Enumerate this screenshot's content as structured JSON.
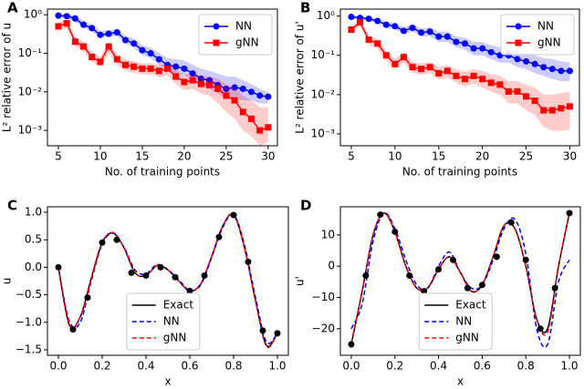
{
  "chart_data": [
    {
      "type": "line",
      "panel_label": "A",
      "xlabel": "No. of training points",
      "ylabel": "L² relative error of u",
      "log_y": true,
      "legend": "upper right",
      "x": [
        5,
        6,
        7,
        8,
        9,
        10,
        11,
        12,
        13,
        14,
        15,
        16,
        17,
        18,
        19,
        20,
        21,
        22,
        23,
        24,
        25,
        26,
        27,
        28,
        29,
        30
      ],
      "xlim": [
        3.7,
        31.1
      ],
      "xticks": [
        5,
        10,
        15,
        20,
        25,
        30
      ],
      "ylim": [
        0.0004,
        1.4
      ],
      "yticks": [
        {
          "value": 0.001,
          "label": "10⁻³"
        },
        {
          "value": 0.01,
          "label": "10⁻²"
        },
        {
          "value": 0.1,
          "label": "10⁻¹"
        },
        {
          "value": 1,
          "label": "10⁰"
        }
      ],
      "series": [
        {
          "name": "NN",
          "color": "#0000ff",
          "marker": "o",
          "values": [
            0.95,
            0.92,
            0.8,
            0.55,
            0.45,
            0.3,
            0.32,
            0.35,
            0.22,
            0.18,
            0.12,
            0.1,
            0.07,
            0.05,
            0.045,
            0.04,
            0.03,
            0.022,
            0.02,
            0.015,
            0.012,
            0.013,
            0.012,
            0.01,
            0.008,
            0.0075
          ],
          "lower": [
            0.85,
            0.8,
            0.65,
            0.45,
            0.37,
            0.25,
            0.27,
            0.28,
            0.18,
            0.14,
            0.09,
            0.075,
            0.05,
            0.035,
            0.03,
            0.027,
            0.02,
            0.014,
            0.012,
            0.009,
            0.007,
            0.007,
            0.006,
            0.006,
            0.005,
            0.005
          ],
          "upper": [
            1.05,
            1.05,
            0.95,
            0.7,
            0.55,
            0.38,
            0.4,
            0.42,
            0.28,
            0.24,
            0.16,
            0.14,
            0.1,
            0.075,
            0.07,
            0.065,
            0.05,
            0.04,
            0.035,
            0.03,
            0.025,
            0.025,
            0.02,
            0.016,
            0.012,
            0.01
          ]
        },
        {
          "name": "gNN",
          "color": "#ff0000",
          "marker": "s",
          "values": [
            0.5,
            0.6,
            0.2,
            0.15,
            0.08,
            0.06,
            0.15,
            0.07,
            0.05,
            0.045,
            0.04,
            0.04,
            0.035,
            0.04,
            0.025,
            0.018,
            0.02,
            0.016,
            0.015,
            0.012,
            0.008,
            0.006,
            0.003,
            0.002,
            0.001,
            0.0012
          ],
          "lower": [
            0.4,
            0.45,
            0.15,
            0.11,
            0.06,
            0.045,
            0.1,
            0.05,
            0.035,
            0.032,
            0.028,
            0.028,
            0.024,
            0.026,
            0.016,
            0.011,
            0.012,
            0.009,
            0.008,
            0.005,
            0.003,
            0.002,
            0.001,
            0.0007,
            0.0004,
            0.0005
          ],
          "upper": [
            0.62,
            0.75,
            0.27,
            0.2,
            0.11,
            0.08,
            0.2,
            0.095,
            0.07,
            0.062,
            0.055,
            0.055,
            0.05,
            0.055,
            0.037,
            0.028,
            0.03,
            0.026,
            0.025,
            0.022,
            0.016,
            0.013,
            0.008,
            0.006,
            0.004,
            0.004
          ]
        }
      ]
    },
    {
      "type": "line",
      "panel_label": "B",
      "xlabel": "No. of training points",
      "ylabel": "L² relative error of u'",
      "log_y": true,
      "legend": "upper right",
      "x": [
        5,
        6,
        7,
        8,
        9,
        10,
        11,
        12,
        13,
        14,
        15,
        16,
        17,
        18,
        19,
        20,
        21,
        22,
        23,
        24,
        25,
        26,
        27,
        28,
        29,
        30
      ],
      "xlim": [
        3.75,
        31.1
      ],
      "xticks": [
        5,
        10,
        15,
        20,
        25,
        30
      ],
      "ylim": [
        0.0005,
        1.5
      ],
      "yticks": [
        {
          "value": 0.001,
          "label": "10⁻³"
        },
        {
          "value": 0.01,
          "label": "10⁻²"
        },
        {
          "value": 0.1,
          "label": "10⁻¹"
        },
        {
          "value": 1,
          "label": "10⁰"
        }
      ],
      "series": [
        {
          "name": "NN",
          "color": "#0000ff",
          "marker": "o",
          "values": [
            0.95,
            0.9,
            0.85,
            0.75,
            0.6,
            0.55,
            0.42,
            0.5,
            0.38,
            0.4,
            0.3,
            0.3,
            0.22,
            0.2,
            0.15,
            0.15,
            0.12,
            0.1,
            0.1,
            0.08,
            0.07,
            0.06,
            0.05,
            0.045,
            0.04,
            0.04
          ],
          "lower": [
            0.85,
            0.8,
            0.75,
            0.65,
            0.5,
            0.45,
            0.34,
            0.4,
            0.3,
            0.3,
            0.22,
            0.22,
            0.16,
            0.14,
            0.1,
            0.1,
            0.08,
            0.065,
            0.065,
            0.05,
            0.045,
            0.035,
            0.03,
            0.025,
            0.022,
            0.022
          ],
          "upper": [
            1.05,
            1.0,
            0.95,
            0.85,
            0.72,
            0.66,
            0.52,
            0.62,
            0.48,
            0.52,
            0.4,
            0.4,
            0.3,
            0.28,
            0.22,
            0.22,
            0.18,
            0.16,
            0.16,
            0.13,
            0.12,
            0.1,
            0.085,
            0.08,
            0.07,
            0.065
          ]
        },
        {
          "name": "gNN",
          "color": "#ff0000",
          "marker": "s",
          "values": [
            0.45,
            0.7,
            0.25,
            0.2,
            0.1,
            0.06,
            0.09,
            0.05,
            0.045,
            0.05,
            0.035,
            0.04,
            0.03,
            0.025,
            0.03,
            0.025,
            0.02,
            0.018,
            0.012,
            0.012,
            0.009,
            0.007,
            0.004,
            0.004,
            0.0045,
            0.005
          ],
          "lower": [
            0.38,
            0.55,
            0.19,
            0.15,
            0.075,
            0.045,
            0.065,
            0.036,
            0.032,
            0.035,
            0.024,
            0.027,
            0.02,
            0.016,
            0.019,
            0.015,
            0.012,
            0.01,
            0.006,
            0.006,
            0.004,
            0.003,
            0.0015,
            0.0012,
            0.0012,
            0.0013
          ],
          "upper": [
            0.55,
            0.85,
            0.32,
            0.26,
            0.13,
            0.08,
            0.12,
            0.068,
            0.062,
            0.068,
            0.05,
            0.057,
            0.044,
            0.038,
            0.045,
            0.04,
            0.033,
            0.03,
            0.022,
            0.022,
            0.018,
            0.015,
            0.01,
            0.01,
            0.011,
            0.012
          ]
        }
      ]
    },
    {
      "type": "line",
      "panel_label": "C",
      "xlabel": "x",
      "ylabel": "u",
      "legend": "lower center",
      "x": [
        0,
        0.05,
        0.1,
        0.15,
        0.2,
        0.25,
        0.3,
        0.35,
        0.4,
        0.45,
        0.5,
        0.55,
        0.6,
        0.65,
        0.7,
        0.75,
        0.8,
        0.85,
        0.9,
        0.95,
        1
      ],
      "xlim": [
        -0.05,
        1.05
      ],
      "xticks": [
        {
          "value": 0,
          "label": "0.0"
        },
        0.2,
        0.4,
        0.6,
        0.8,
        {
          "value": 1,
          "label": "1.0"
        }
      ],
      "ylim": [
        -1.6,
        1.1
      ],
      "yticks": [
        {
          "value": -1.5,
          "label": "−1.5"
        },
        {
          "value": -1,
          "label": "−1.0"
        },
        {
          "value": -0.5,
          "label": "−0.5"
        },
        {
          "value": 0,
          "label": "0.0"
        },
        0.5,
        {
          "value": 1,
          "label": "1.0"
        }
      ],
      "series": [
        {
          "name": "Exact",
          "color": "#000000",
          "linestyle": "solid",
          "values": [
            0.0,
            -1.05,
            -0.9,
            -0.2,
            0.45,
            0.62,
            0.35,
            -0.1,
            -0.15,
            0.03,
            -0.05,
            -0.25,
            -0.43,
            -0.3,
            0.2,
            0.75,
            0.95,
            0.35,
            -0.6,
            -1.42,
            -1.2
          ]
        },
        {
          "name": "NN",
          "color": "#0000ff",
          "linestyle": "dashed",
          "values": [
            0.0,
            -0.98,
            -1.0,
            -0.25,
            0.42,
            0.62,
            0.36,
            -0.05,
            -0.12,
            0.05,
            -0.04,
            -0.23,
            -0.42,
            -0.32,
            0.18,
            0.72,
            0.96,
            0.4,
            -0.55,
            -1.36,
            -1.2
          ]
        },
        {
          "name": "gNN",
          "color": "#ff0000",
          "linestyle": "dashed",
          "values": [
            0.0,
            -1.04,
            -0.9,
            -0.2,
            0.45,
            0.63,
            0.35,
            -0.1,
            -0.15,
            0.03,
            -0.05,
            -0.25,
            -0.43,
            -0.3,
            0.2,
            0.75,
            0.96,
            0.35,
            -0.62,
            -1.44,
            -1.2
          ]
        }
      ],
      "points": {
        "color": "#000000",
        "x": [
          0,
          0.0667,
          0.1333,
          0.2,
          0.2667,
          0.3333,
          0.4,
          0.4667,
          0.5333,
          0.6,
          0.6667,
          0.7333,
          0.8,
          0.8667,
          0.9333,
          1
        ],
        "y": [
          0,
          -1.13,
          -0.55,
          0.45,
          0.5,
          -0.1,
          -0.15,
          0.0,
          -0.18,
          -0.43,
          -0.15,
          0.55,
          0.95,
          0.1,
          -1.15,
          -1.2
        ]
      }
    },
    {
      "type": "line",
      "panel_label": "D",
      "xlabel": "x",
      "ylabel": "u'",
      "legend": "lower center",
      "x": [
        0,
        0.05,
        0.1,
        0.15,
        0.2,
        0.25,
        0.3,
        0.35,
        0.4,
        0.45,
        0.5,
        0.55,
        0.6,
        0.65,
        0.7,
        0.75,
        0.8,
        0.85,
        0.9,
        0.95,
        1
      ],
      "xlim": [
        -0.05,
        1.05
      ],
      "xticks": [
        {
          "value": 0,
          "label": "0.0"
        },
        0.2,
        0.4,
        0.6,
        0.8,
        {
          "value": 1,
          "label": "1.0"
        }
      ],
      "ylim": [
        -28.5,
        19
      ],
      "yticks": [
        {
          "value": -20,
          "label": "−20"
        },
        {
          "value": -10,
          "label": "−10"
        },
        0,
        10
      ],
      "series": [
        {
          "name": "Exact",
          "color": "#000000",
          "linestyle": "solid",
          "values": [
            -25,
            -8,
            10,
            17,
            11,
            0,
            -7,
            -7,
            -1,
            3,
            -2,
            -8,
            -6,
            3,
            13,
            12,
            0,
            -17,
            -20,
            0,
            17
          ]
        },
        {
          "name": "NN",
          "color": "#0000ff",
          "linestyle": "dashed",
          "values": [
            -20,
            -12,
            8,
            17,
            12,
            2,
            -6,
            -7,
            0,
            4.5,
            -2,
            -7,
            -6,
            2,
            12,
            15,
            4,
            -20,
            -25,
            -5,
            2
          ]
        },
        {
          "name": "gNN",
          "color": "#ff0000",
          "linestyle": "dashed",
          "values": [
            -24.5,
            -8,
            10,
            17,
            11,
            0,
            -7,
            -7,
            -1,
            3,
            -2,
            -8,
            -6,
            3,
            13,
            12,
            0,
            -17,
            -21,
            0,
            17
          ]
        }
      ],
      "points": {
        "color": "#000000",
        "x": [
          0,
          0.0667,
          0.1333,
          0.2,
          0.2667,
          0.3333,
          0.4,
          0.4667,
          0.5333,
          0.6,
          0.6667,
          0.7333,
          0.8,
          0.8667,
          0.9333,
          1
        ],
        "y": [
          -25,
          -3,
          16.5,
          11,
          -3,
          -8,
          -1,
          2,
          -7,
          -6,
          3,
          14,
          2,
          -20,
          -7,
          17
        ]
      }
    }
  ]
}
